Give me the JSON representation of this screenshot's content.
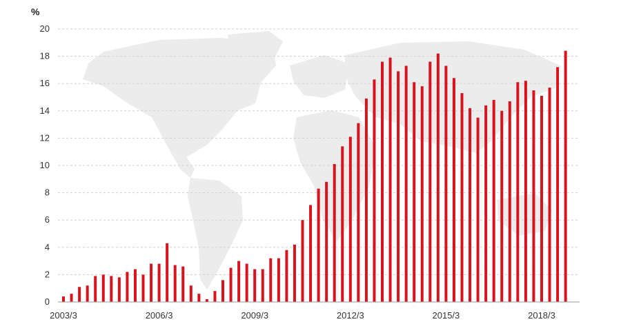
{
  "chart_data": {
    "type": "bar",
    "title": "",
    "xlabel": "",
    "ylabel": "%",
    "ylim": [
      0,
      20
    ],
    "y_ticks": [
      "0",
      "2",
      "4",
      "6",
      "8",
      "10",
      "12",
      "14",
      "16",
      "18",
      "20"
    ],
    "x_tick_labels": [
      "2003/3",
      "2006/3",
      "2009/3",
      "2012/3",
      "2015/3",
      "2018/3"
    ],
    "grid": true,
    "bar_color": "#d7141e",
    "background_decoration": "world-map",
    "series": [
      {
        "values": [
          0.4,
          0.6,
          1.1,
          1.2,
          1.9,
          2.0,
          1.9,
          1.8,
          2.2,
          2.4,
          2.0,
          2.8,
          2.8,
          4.3,
          2.7,
          2.6,
          1.2,
          0.6,
          0.2,
          0.8,
          1.6,
          2.5,
          3.0,
          2.8,
          2.4,
          2.4,
          3.2,
          3.2,
          3.8,
          4.2,
          6.0,
          7.1,
          8.3,
          8.8,
          10.1,
          11.4,
          12.1,
          13.1,
          14.9,
          16.3,
          17.6,
          17.9,
          16.9,
          17.3,
          16.1,
          15.8,
          17.6,
          18.2,
          17.3,
          16.4,
          15.3,
          14.2,
          13.5,
          14.4,
          14.8,
          14.0,
          14.7,
          16.1,
          16.2,
          15.5,
          15.1,
          15.7,
          17.2,
          18.4
        ]
      }
    ]
  }
}
